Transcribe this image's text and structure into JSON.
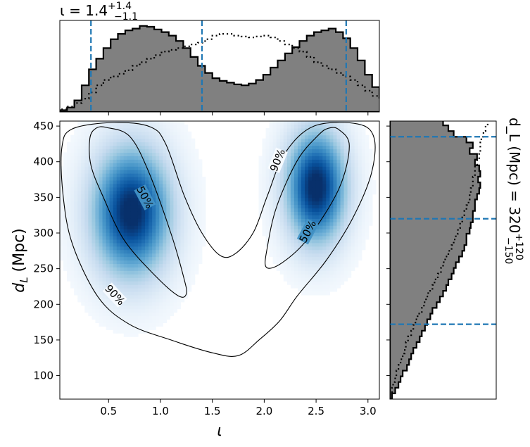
{
  "chart_data": [
    {
      "type": "heatmap",
      "title": "",
      "xlabel": "ι",
      "ylabel": "d_L (Mpc)",
      "xlim": [
        0.03,
        3.11
      ],
      "ylim": [
        67,
        457
      ],
      "xticks": [
        0.5,
        1.0,
        1.5,
        2.0,
        2.5,
        3.0
      ],
      "xtick_labels": [
        "0.5",
        "1.0",
        "1.5",
        "2.0",
        "2.5",
        "3.0"
      ],
      "yticks": [
        100,
        150,
        200,
        250,
        300,
        350,
        400,
        450
      ],
      "ytick_labels": [
        "100",
        "150",
        "200",
        "250",
        "300",
        "350",
        "400",
        "450"
      ],
      "colormap": "Blues",
      "density_peaks": [
        {
          "x": 0.72,
          "y": 330,
          "sx": 0.26,
          "sy": 62
        },
        {
          "x": 2.5,
          "y": 365,
          "sx": 0.2,
          "sy": 55
        }
      ],
      "contours": [
        {
          "label": "50%",
          "regions": [
            [
              [
                0.48,
                448
              ],
              [
                0.7,
                436
              ],
              [
                0.88,
                388
              ],
              [
                1.1,
                300
              ],
              [
                1.22,
                240
              ],
              [
                1.25,
                215
              ],
              [
                1.17,
                212
              ],
              [
                0.95,
                240
              ],
              [
                0.65,
                290
              ],
              [
                0.45,
                350
              ],
              [
                0.33,
                395
              ],
              [
                0.32,
                433
              ],
              [
                0.38,
                447
              ]
            ],
            [
              [
                2.72,
                445
              ],
              [
                2.82,
                422
              ],
              [
                2.72,
                362
              ],
              [
                2.42,
                292
              ],
              [
                2.17,
                258
              ],
              [
                2.02,
                252
              ],
              [
                2.03,
                280
              ],
              [
                2.12,
                337
              ],
              [
                2.32,
                402
              ],
              [
                2.52,
                437
              ],
              [
                2.62,
                447
              ]
            ]
          ]
        },
        {
          "label": "90%",
          "regions": [
            [
              [
                0.05,
                420
              ],
              [
                0.15,
                446
              ],
              [
                0.55,
                455
              ],
              [
                0.9,
                449
              ],
              [
                1.05,
                425
              ],
              [
                1.23,
                352
              ],
              [
                1.4,
                300
              ],
              [
                1.58,
                268
              ],
              [
                1.73,
                272
              ],
              [
                1.9,
                302
              ],
              [
                2.03,
                352
              ],
              [
                2.2,
                412
              ],
              [
                2.48,
                450
              ],
              [
                2.9,
                453
              ],
              [
                3.06,
                433
              ],
              [
                3.03,
                382
              ],
              [
                2.85,
                320
              ],
              [
                2.6,
                262
              ],
              [
                2.32,
                212
              ],
              [
                2.15,
                177
              ],
              [
                1.95,
                150
              ],
              [
                1.75,
                128
              ],
              [
                1.5,
                132
              ],
              [
                1.1,
                150
              ],
              [
                0.7,
                172
              ],
              [
                0.4,
                210
              ],
              [
                0.15,
                285
              ],
              [
                0.06,
                355
              ]
            ]
          ]
        }
      ],
      "annotations": [
        "50%",
        "50%",
        "90%",
        "90%"
      ]
    },
    {
      "type": "histogram",
      "panel": "top-marginal",
      "title": "ι = 1.4^{+1.4}_{-1.1}",
      "title_main": "ι = 1.4",
      "title_sup": "+1.4",
      "title_sub": "−1.1",
      "xlim": [
        0.03,
        3.11
      ],
      "bin_edges_start": 0.03,
      "bin_width": 0.07,
      "series": [
        {
          "style": "filled",
          "color": "#808080",
          "values": [
            2,
            5,
            13,
            30,
            48,
            60,
            72,
            82,
            88,
            92,
            94,
            97,
            96,
            93,
            90,
            86,
            80,
            72,
            62,
            52,
            44,
            38,
            35,
            33,
            31,
            30,
            32,
            36,
            42,
            50,
            58,
            66,
            73,
            80,
            86,
            90,
            92,
            94,
            90,
            83,
            72,
            58,
            42,
            28,
            16,
            8
          ]
        },
        {
          "style": "dotted",
          "values": [
            3,
            6,
            10,
            15,
            22,
            30,
            36,
            40,
            43,
            47,
            52,
            56,
            60,
            64,
            68,
            70,
            72,
            74,
            76,
            78,
            82,
            86,
            88,
            88,
            86,
            85,
            84,
            85,
            86,
            84,
            80,
            76,
            72,
            68,
            62,
            56,
            52,
            48,
            44,
            40,
            36,
            30,
            24,
            18,
            12,
            6
          ]
        }
      ],
      "markers": {
        "median": 1.4,
        "lower": 0.33,
        "upper": 2.79
      }
    },
    {
      "type": "histogram",
      "panel": "right-marginal",
      "title": "d_L (Mpc) = 320^{+120}_{-150}",
      "title_main": "d_L (Mpc) = 320",
      "title_sup": "+120",
      "title_sub": "−150",
      "orientation": "horizontal",
      "ylim": [
        67,
        457
      ],
      "bin_edges_start": 67,
      "bin_width": 8,
      "series": [
        {
          "style": "filled",
          "color": "#808080",
          "values": [
            2,
            5,
            8,
            10,
            12,
            16,
            18,
            20,
            22,
            25,
            28,
            30,
            33,
            35,
            38,
            40,
            44,
            47,
            50,
            53,
            55,
            58,
            60,
            62,
            65,
            68,
            70,
            72,
            72,
            75,
            76,
            78,
            78,
            80,
            80,
            82,
            84,
            85,
            83,
            85,
            84,
            80,
            82,
            75,
            78,
            72,
            60,
            55,
            50,
            45,
            42
          ]
        },
        {
          "style": "dotted",
          "values": [
            0,
            2,
            3,
            5,
            6,
            8,
            10,
            12,
            14,
            15,
            17,
            20,
            22,
            24,
            26,
            30,
            32,
            34,
            36,
            40,
            42,
            45,
            48,
            50,
            52,
            55,
            58,
            60,
            62,
            64,
            66,
            68,
            70,
            72,
            74,
            75,
            76,
            78,
            78,
            80,
            80,
            82,
            84,
            85,
            85,
            86,
            88,
            90,
            92,
            94,
            96
          ]
        }
      ],
      "markers": {
        "median": 320,
        "lower": 172,
        "upper": 435
      }
    }
  ]
}
